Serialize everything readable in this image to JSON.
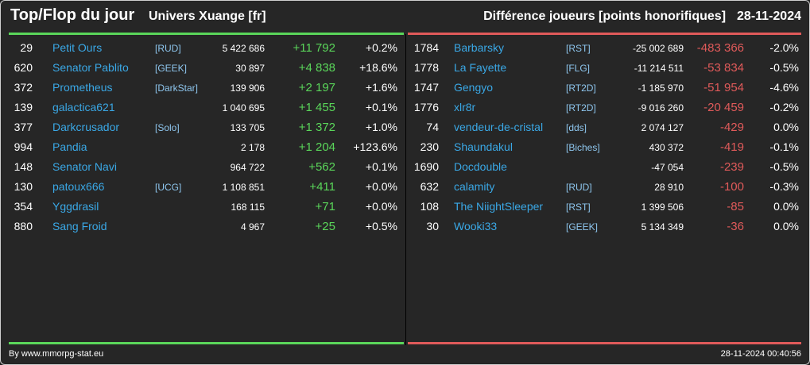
{
  "header": {
    "title": "Top/Flop du jour",
    "universe": "Univers Xuange [fr]",
    "metric": "Différence joueurs [points honorifiques]",
    "date": "28-11-2024"
  },
  "colors": {
    "top": "#5ad65a",
    "flop": "#e05a5a",
    "link": "#3aa8e6"
  },
  "top": [
    {
      "rank": "29",
      "name": "Petit Ours",
      "alliance": "[RUD]",
      "points": "5 422 686",
      "delta": "+11 792",
      "pct": "+0.2%"
    },
    {
      "rank": "620",
      "name": "Senator Pablito",
      "alliance": "[GEEK]",
      "points": "30 897",
      "delta": "+4 838",
      "pct": "+18.6%"
    },
    {
      "rank": "372",
      "name": "Prometheus",
      "alliance": "[DarkStar]",
      "points": "139 906",
      "delta": "+2 197",
      "pct": "+1.6%"
    },
    {
      "rank": "139",
      "name": "galactica621",
      "alliance": "",
      "points": "1 040 695",
      "delta": "+1 455",
      "pct": "+0.1%"
    },
    {
      "rank": "377",
      "name": "Darkcrusador",
      "alliance": "[Solo]",
      "points": "133 705",
      "delta": "+1 372",
      "pct": "+1.0%"
    },
    {
      "rank": "994",
      "name": "Pandia",
      "alliance": "",
      "points": "2 178",
      "delta": "+1 204",
      "pct": "+123.6%"
    },
    {
      "rank": "148",
      "name": "Senator Navi",
      "alliance": "",
      "points": "964 722",
      "delta": "+562",
      "pct": "+0.1%"
    },
    {
      "rank": "130",
      "name": "patoux666",
      "alliance": "[UCG]",
      "points": "1 108 851",
      "delta": "+411",
      "pct": "+0.0%"
    },
    {
      "rank": "354",
      "name": "Yggdrasil",
      "alliance": "",
      "points": "168 115",
      "delta": "+71",
      "pct": "+0.0%"
    },
    {
      "rank": "880",
      "name": "Sang Froid",
      "alliance": "",
      "points": "4 967",
      "delta": "+25",
      "pct": "+0.5%"
    }
  ],
  "flop": [
    {
      "rank": "1784",
      "name": "Barbarsky",
      "alliance": "[RST]",
      "points": "-25 002 689",
      "delta": "-483 366",
      "pct": "-2.0%"
    },
    {
      "rank": "1778",
      "name": "La Fayette",
      "alliance": "[FLG]",
      "points": "-11 214 511",
      "delta": "-53 834",
      "pct": "-0.5%"
    },
    {
      "rank": "1747",
      "name": "Gengyo",
      "alliance": "[RT2D]",
      "points": "-1 185 970",
      "delta": "-51 954",
      "pct": "-4.6%"
    },
    {
      "rank": "1776",
      "name": "xlr8r",
      "alliance": "[RT2D]",
      "points": "-9 016 260",
      "delta": "-20 459",
      "pct": "-0.2%"
    },
    {
      "rank": "74",
      "name": "vendeur-de-cristal",
      "alliance": "[dds]",
      "points": "2 074 127",
      "delta": "-429",
      "pct": "0.0%"
    },
    {
      "rank": "230",
      "name": "Shaundakul",
      "alliance": "[Biches]",
      "points": "430 372",
      "delta": "-419",
      "pct": "-0.1%"
    },
    {
      "rank": "1690",
      "name": "Docdouble",
      "alliance": "",
      "points": "-47 054",
      "delta": "-239",
      "pct": "-0.5%"
    },
    {
      "rank": "632",
      "name": "calamity",
      "alliance": "[RUD]",
      "points": "28 910",
      "delta": "-100",
      "pct": "-0.3%"
    },
    {
      "rank": "108",
      "name": "The NiightSleeper",
      "alliance": "[RST]",
      "points": "1 399 506",
      "delta": "-85",
      "pct": "0.0%"
    },
    {
      "rank": "30",
      "name": "Wooki33",
      "alliance": "[GEEK]",
      "points": "5 134 349",
      "delta": "-36",
      "pct": "0.0%"
    }
  ],
  "footer": {
    "source": "By www.mmorpg-stat.eu",
    "timestamp": "28-11-2024 00:40:56"
  }
}
